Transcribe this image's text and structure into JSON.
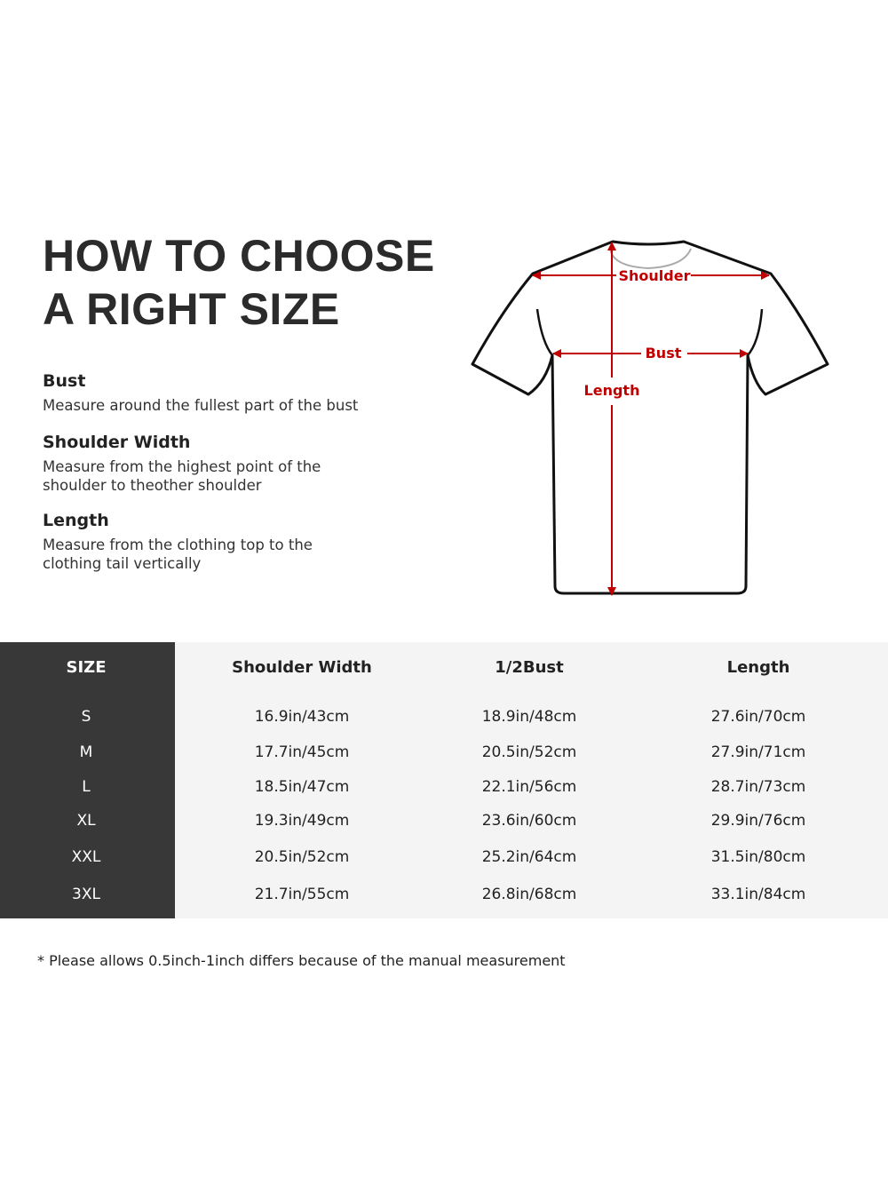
{
  "title": {
    "line1": "HOW TO CHOOSE",
    "line2": "A RIGHT SIZE"
  },
  "sections": [
    {
      "heading": "Bust",
      "text": "Measure around the fullest part of the bust"
    },
    {
      "heading": "Shoulder Width",
      "text": "Measure from the highest point of the shoulder to theother shoulder"
    },
    {
      "heading": "Length",
      "text": "Measure from the clothing top to the clothing tail vertically"
    }
  ],
  "diagram": {
    "shoulder": "Shoulder",
    "bust": "Bust",
    "length": "Length",
    "arrow_color": "#c00000"
  },
  "table": {
    "headers": [
      "SIZE",
      "Shoulder Width",
      "1/2Bust",
      "Length"
    ],
    "rows": [
      [
        "S",
        "16.9in/43cm",
        "18.9in/48cm",
        "27.6in/70cm"
      ],
      [
        "M",
        "17.7in/45cm",
        "20.5in/52cm",
        "27.9in/71cm"
      ],
      [
        "L",
        "18.5in/47cm",
        "22.1in/56cm",
        "28.7in/73cm"
      ],
      [
        "XL",
        "19.3in/49cm",
        "23.6in/60cm",
        "29.9in/76cm"
      ],
      [
        "XXL",
        "20.5in/52cm",
        "25.2in/64cm",
        "31.5in/80cm"
      ],
      [
        "3XL",
        "21.7in/55cm",
        "26.8in/68cm",
        "33.1in/84cm"
      ]
    ]
  },
  "note": "* Please allows 0.5inch-1inch differs because of the  manual measurement"
}
